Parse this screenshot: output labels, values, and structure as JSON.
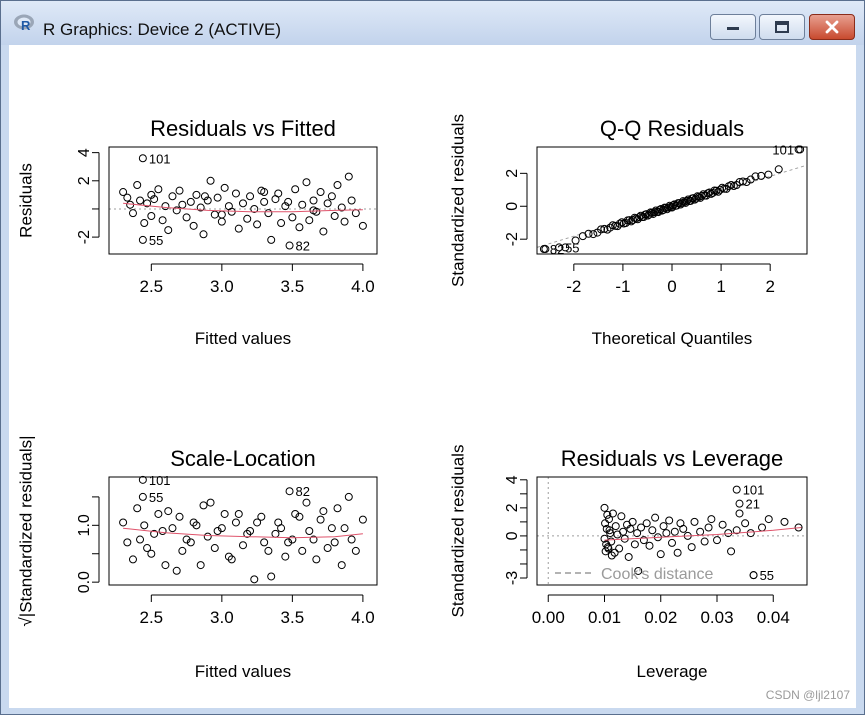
{
  "window": {
    "title": "R Graphics: Device 2 (ACTIVE)",
    "icons": [
      "r-logo-icon",
      "minimize-icon",
      "maximize-icon",
      "close-icon"
    ]
  },
  "watermark": "CSDN @ljl2107",
  "colors": {
    "points": "#000000",
    "smooth": "#DF536B",
    "reference": "#9E9E9E"
  },
  "chart_data": [
    {
      "type": "scatter",
      "title": "Residuals vs Fitted",
      "xlabel": "Fitted values",
      "ylabel": "Residuals",
      "xlim": [
        2.2,
        4.1
      ],
      "ylim": [
        -3.2,
        4.4
      ],
      "xticks": [
        2.5,
        3.0,
        3.5,
        4.0
      ],
      "xtick_labels": [
        "2.5",
        "3.0",
        "3.5",
        "4.0"
      ],
      "yticks": [
        -2,
        0,
        2,
        4
      ],
      "ytick_labels": [
        "-2",
        "",
        "2",
        "4"
      ],
      "reference_line": {
        "y": 0
      },
      "smooth": {
        "x": [
          2.3,
          2.6,
          2.9,
          3.2,
          3.5,
          3.8,
          4.0
        ],
        "y": [
          0.4,
          0.1,
          -0.1,
          -0.2,
          -0.2,
          -0.1,
          -0.05
        ]
      },
      "labeled_points": [
        {
          "label": "101",
          "x": 2.44,
          "y": 3.6
        },
        {
          "label": "55",
          "x": 2.44,
          "y": -2.2
        },
        {
          "label": "82",
          "x": 3.48,
          "y": -2.6
        }
      ],
      "x": [
        2.3,
        2.33,
        2.37,
        2.4,
        2.42,
        2.45,
        2.47,
        2.5,
        2.52,
        2.55,
        2.58,
        2.6,
        2.62,
        2.65,
        2.68,
        2.7,
        2.72,
        2.75,
        2.78,
        2.8,
        2.82,
        2.85,
        2.87,
        2.9,
        2.92,
        2.95,
        2.97,
        3.0,
        3.02,
        3.05,
        3.07,
        3.1,
        3.12,
        3.15,
        3.18,
        3.2,
        3.23,
        3.25,
        3.28,
        3.3,
        3.33,
        3.35,
        3.38,
        3.4,
        3.42,
        3.45,
        3.47,
        3.5,
        3.52,
        3.55,
        3.57,
        3.6,
        3.62,
        3.65,
        3.67,
        3.7,
        3.72,
        3.75,
        3.78,
        3.8,
        3.82,
        3.85,
        3.87,
        3.9,
        3.92,
        3.95,
        4.0,
        2.35,
        2.5,
        2.88,
        3.0,
        3.3,
        3.65
      ],
      "y": [
        1.2,
        0.8,
        -0.3,
        1.7,
        0.6,
        -1.0,
        0.4,
        -0.5,
        0.7,
        1.4,
        -0.8,
        0.2,
        -1.5,
        0.9,
        -0.1,
        1.3,
        0.3,
        -0.6,
        0.5,
        -1.2,
        1.0,
        0.1,
        -1.8,
        0.6,
        2.0,
        -0.4,
        0.8,
        -0.9,
        1.5,
        0.2,
        -0.2,
        1.1,
        -1.4,
        0.4,
        -0.7,
        0.9,
        0.0,
        -1.1,
        1.3,
        0.5,
        -0.3,
        -2.2,
        0.7,
        1.1,
        -1.0,
        0.2,
        0.5,
        -0.6,
        1.4,
        -1.3,
        0.3,
        1.9,
        -0.8,
        0.6,
        -0.2,
        1.2,
        -1.6,
        0.4,
        0.9,
        -0.5,
        1.7,
        0.1,
        -0.9,
        2.3,
        0.6,
        -0.3,
        -1.2,
        0.3,
        1.0,
        0.9,
        -0.4,
        1.2,
        -0.1
      ]
    },
    {
      "type": "scatter",
      "title": "Q-Q Residuals",
      "xlabel": "Theoretical Quantiles",
      "ylabel": "Standardized residuals",
      "xlim": [
        -2.75,
        2.75
      ],
      "ylim": [
        -2.9,
        3.6
      ],
      "xticks": [
        -2,
        -1,
        0,
        1,
        2
      ],
      "xtick_labels": [
        "-2",
        "-1",
        "0",
        "1",
        "2"
      ],
      "yticks": [
        -2,
        0,
        2
      ],
      "ytick_labels": [
        "-2",
        "0",
        "2"
      ],
      "reference_line": {
        "x": [
          -2.75,
          2.75
        ],
        "y": [
          -2.5,
          2.5
        ]
      },
      "labeled_points": [
        {
          "label": "101",
          "x": 2.61,
          "y": 3.45
        },
        {
          "label": "82",
          "x": -2.61,
          "y": -2.6
        },
        {
          "label": "55",
          "x": -2.3,
          "y": -2.5
        }
      ],
      "n": 101
    },
    {
      "type": "scatter",
      "title": "Scale-Location",
      "xlabel": "Fitted values",
      "ylabel": "√|Standardized residuals|",
      "xlim": [
        2.2,
        4.1
      ],
      "ylim": [
        -0.05,
        1.85
      ],
      "xticks": [
        2.5,
        3.0,
        3.5,
        4.0
      ],
      "xtick_labels": [
        "2.5",
        "3.0",
        "3.5",
        "4.0"
      ],
      "yticks": [
        0.0,
        0.5,
        1.0,
        1.5
      ],
      "ytick_labels": [
        "0.0",
        "",
        "1.0",
        ""
      ],
      "smooth": {
        "x": [
          2.3,
          2.6,
          2.9,
          3.2,
          3.5,
          3.8,
          4.0
        ],
        "y": [
          0.95,
          0.87,
          0.82,
          0.8,
          0.78,
          0.8,
          0.85
        ]
      },
      "labeled_points": [
        {
          "label": "101",
          "x": 2.44,
          "y": 1.8
        },
        {
          "label": "55",
          "x": 2.44,
          "y": 1.5
        },
        {
          "label": "82",
          "x": 3.48,
          "y": 1.6
        }
      ],
      "x": [
        2.3,
        2.33,
        2.37,
        2.4,
        2.42,
        2.45,
        2.47,
        2.5,
        2.52,
        2.55,
        2.58,
        2.6,
        2.62,
        2.65,
        2.68,
        2.7,
        2.72,
        2.75,
        2.78,
        2.8,
        2.82,
        2.85,
        2.87,
        2.9,
        2.92,
        2.95,
        2.97,
        3.0,
        3.02,
        3.05,
        3.07,
        3.1,
        3.12,
        3.15,
        3.18,
        3.2,
        3.23,
        3.25,
        3.28,
        3.3,
        3.33,
        3.35,
        3.38,
        3.4,
        3.42,
        3.45,
        3.47,
        3.5,
        3.52,
        3.55,
        3.57,
        3.6,
        3.62,
        3.65,
        3.67,
        3.7,
        3.72,
        3.75,
        3.78,
        3.8,
        3.82,
        3.85,
        3.87,
        3.9,
        3.92,
        3.95,
        4.0
      ],
      "y": [
        1.05,
        0.7,
        0.4,
        1.3,
        0.75,
        1.0,
        0.6,
        0.5,
        0.85,
        1.2,
        0.9,
        0.3,
        1.25,
        0.95,
        0.2,
        1.15,
        0.55,
        0.75,
        0.7,
        1.05,
        1.0,
        0.3,
        1.35,
        0.8,
        1.4,
        0.6,
        0.9,
        0.95,
        1.2,
        0.45,
        0.4,
        1.05,
        1.2,
        0.65,
        0.85,
        0.9,
        0.05,
        1.05,
        1.15,
        0.7,
        0.55,
        0.1,
        0.85,
        1.05,
        0.95,
        0.45,
        0.7,
        0.75,
        1.2,
        1.15,
        0.55,
        1.4,
        0.9,
        0.75,
        0.4,
        1.1,
        1.25,
        0.6,
        0.95,
        0.7,
        1.3,
        0.3,
        0.95,
        1.5,
        0.75,
        0.55,
        1.1
      ]
    },
    {
      "type": "scatter",
      "title": "Residuals vs Leverage",
      "xlabel": "Leverage",
      "ylabel": "Standardized residuals",
      "xlim": [
        -0.002,
        0.046
      ],
      "ylim": [
        -3.5,
        4.2
      ],
      "xticks": [
        0.0,
        0.01,
        0.02,
        0.03,
        0.04
      ],
      "xtick_labels": [
        "0.00",
        "0.01",
        "0.02",
        "0.03",
        "0.04"
      ],
      "yticks": [
        -3,
        -2,
        -1,
        0,
        1,
        2,
        3,
        4
      ],
      "ytick_labels": [
        "-3",
        "",
        "",
        "0",
        "",
        "2",
        "",
        "4"
      ],
      "reference_line": {
        "y": 0,
        "x": 0
      },
      "legend": {
        "label": "Cook's distance",
        "position": "bottom-left"
      },
      "smooth": {
        "x": [
          0.01,
          0.02,
          0.03,
          0.04,
          0.045
        ],
        "y": [
          -0.3,
          -0.1,
          0.1,
          0.4,
          0.6
        ]
      },
      "labeled_points": [
        {
          "label": "101",
          "x": 0.0335,
          "y": 3.3
        },
        {
          "label": "21",
          "x": 0.034,
          "y": 2.3
        },
        {
          "label": "55",
          "x": 0.0365,
          "y": -2.8
        }
      ],
      "x": [
        0.01,
        0.0102,
        0.0104,
        0.0106,
        0.0108,
        0.011,
        0.0112,
        0.0115,
        0.0118,
        0.012,
        0.0123,
        0.0126,
        0.013,
        0.0133,
        0.0136,
        0.014,
        0.0143,
        0.0146,
        0.015,
        0.0154,
        0.0158,
        0.016,
        0.0165,
        0.017,
        0.0175,
        0.018,
        0.0185,
        0.019,
        0.0195,
        0.02,
        0.0205,
        0.021,
        0.0215,
        0.022,
        0.0225,
        0.023,
        0.0235,
        0.024,
        0.0248,
        0.0255,
        0.026,
        0.027,
        0.0278,
        0.0285,
        0.029,
        0.03,
        0.031,
        0.032,
        0.0325,
        0.0335,
        0.034,
        0.035,
        0.036,
        0.0365,
        0.038,
        0.0392,
        0.042,
        0.0445,
        0.01,
        0.0101,
        0.0103,
        0.0105,
        0.0107,
        0.0109,
        0.0113
      ],
      "y": [
        2.0,
        -1.1,
        0.5,
        -0.8,
        1.2,
        0.2,
        -0.4,
        1.6,
        -1.2,
        0.7,
        0.1,
        -0.9,
        1.4,
        0.3,
        -0.2,
        0.8,
        -1.5,
        0.5,
        1.0,
        -0.6,
        0.2,
        -2.5,
        0.6,
        -0.3,
        0.9,
        -0.7,
        0.4,
        1.3,
        -0.1,
        -1.3,
        0.7,
        0.2,
        1.1,
        -0.5,
        0.3,
        -1.2,
        0.9,
        0.5,
        0.0,
        -0.8,
        1.0,
        0.3,
        -0.4,
        0.6,
        1.2,
        -0.3,
        0.8,
        0.2,
        -1.1,
        0.4,
        1.6,
        0.9,
        0.2,
        -2.8,
        0.6,
        1.2,
        1.0,
        0.6,
        -0.2,
        0.9,
        -0.6,
        1.5,
        -0.9,
        0.4,
        -1.4
      ]
    }
  ]
}
